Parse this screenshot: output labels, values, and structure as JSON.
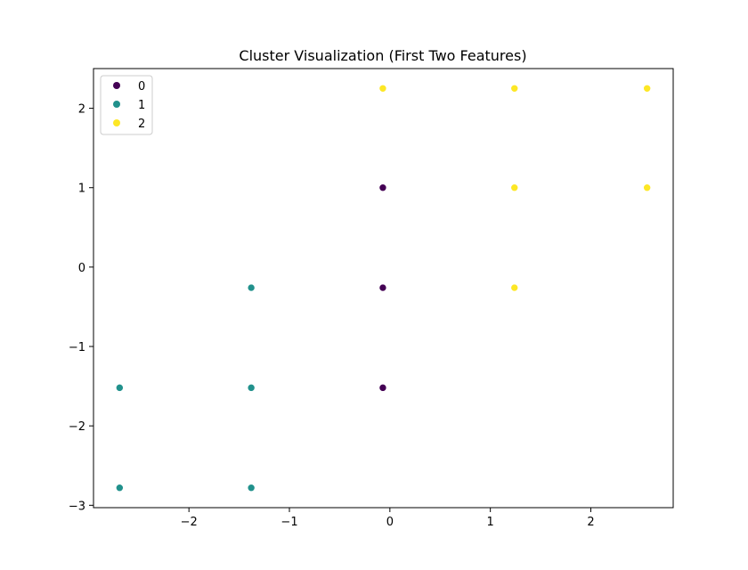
{
  "chart_data": {
    "type": "scatter",
    "title": "Cluster Visualization (First Two Features)",
    "xlabel": "",
    "ylabel": "",
    "xlim": [
      -2.95,
      2.82
    ],
    "ylim": [
      -3.03,
      2.5
    ],
    "xticks": [
      -2,
      -1,
      0,
      1,
      2
    ],
    "yticks": [
      -3,
      -2,
      -1,
      0,
      1,
      2
    ],
    "xtick_labels": [
      "−2",
      "−1",
      "0",
      "1",
      "2"
    ],
    "ytick_labels": [
      "−3",
      "−2",
      "−1",
      "0",
      "1",
      "2"
    ],
    "grid": false,
    "legend_position": "top-left",
    "series": [
      {
        "name": "0",
        "color": "#440154",
        "points": [
          {
            "x": -0.07,
            "y": 1.0
          },
          {
            "x": -0.07,
            "y": -0.26
          },
          {
            "x": -0.07,
            "y": -1.52
          }
        ]
      },
      {
        "name": "1",
        "color": "#21918c",
        "points": [
          {
            "x": -1.38,
            "y": -0.26
          },
          {
            "x": -2.69,
            "y": -1.52
          },
          {
            "x": -1.38,
            "y": -1.52
          },
          {
            "x": -2.69,
            "y": -2.78
          },
          {
            "x": -1.38,
            "y": -2.78
          }
        ]
      },
      {
        "name": "2",
        "color": "#fde725",
        "points": [
          {
            "x": -0.07,
            "y": 2.25
          },
          {
            "x": 1.24,
            "y": 2.25
          },
          {
            "x": 2.56,
            "y": 2.25
          },
          {
            "x": 1.24,
            "y": 1.0
          },
          {
            "x": 2.56,
            "y": 1.0
          },
          {
            "x": 1.24,
            "y": -0.26
          }
        ]
      }
    ]
  }
}
